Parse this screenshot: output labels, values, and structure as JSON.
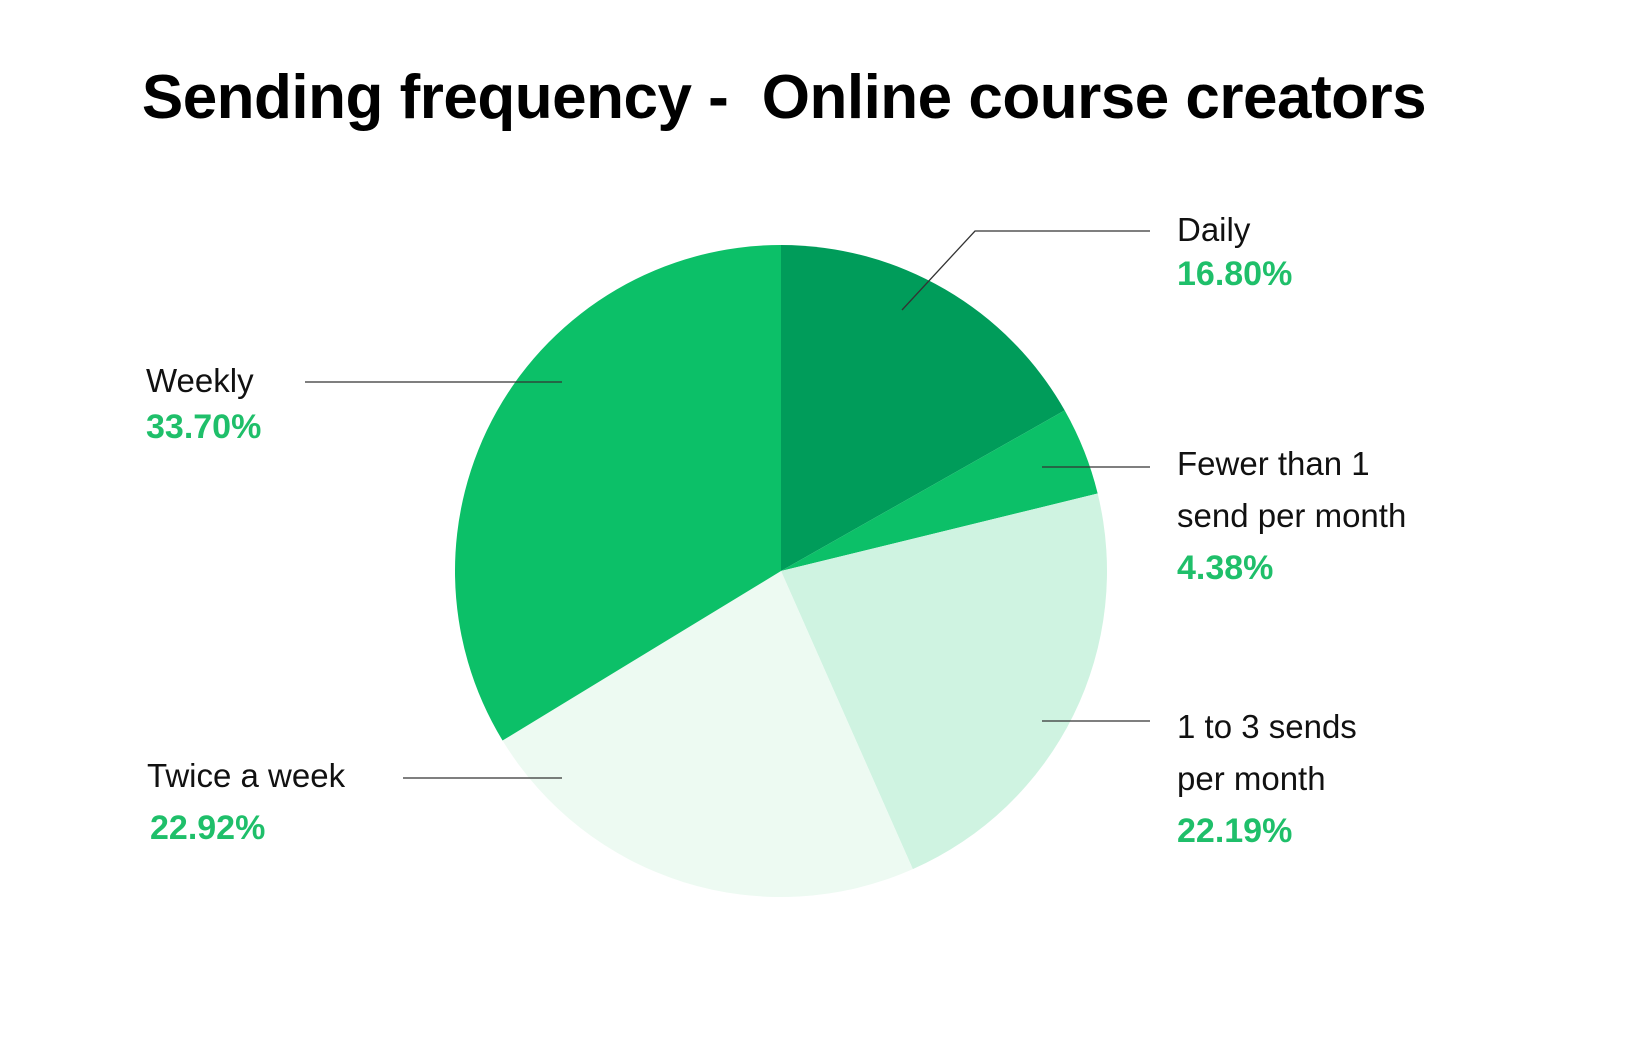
{
  "chart_data": {
    "type": "pie",
    "title": "Sending frequency -  Online course creators",
    "categories": [
      "Daily",
      "Fewer than 1 send per month",
      "1 to 3 sends per month",
      "Twice a week",
      "Weekly"
    ],
    "values": [
      16.8,
      4.38,
      22.19,
      22.92,
      33.7
    ],
    "value_labels": [
      "16.80%",
      "4.38%",
      "22.19%",
      "22.92%",
      "33.70%"
    ],
    "colors": [
      "#009c5a",
      "#0cc068",
      "#cff3e1",
      "#edfaf2",
      "#0cc068"
    ],
    "start_angle_deg": 0,
    "direction": "clockwise",
    "legend": "none (leader-line labels)"
  },
  "labels": {
    "daily": {
      "name": "Daily",
      "pct": "16.80%"
    },
    "fewer": {
      "line1": "Fewer than 1",
      "line2": "send per month",
      "pct": "4.38%"
    },
    "one_to_three": {
      "line1": "1 to 3 sends",
      "line2": "per month",
      "pct": "22.19%"
    },
    "twice": {
      "name": "Twice a week",
      "pct": "22.92%"
    },
    "weekly": {
      "name": "Weekly",
      "pct": "33.70%"
    }
  },
  "accent_color": "#1fbf6a"
}
